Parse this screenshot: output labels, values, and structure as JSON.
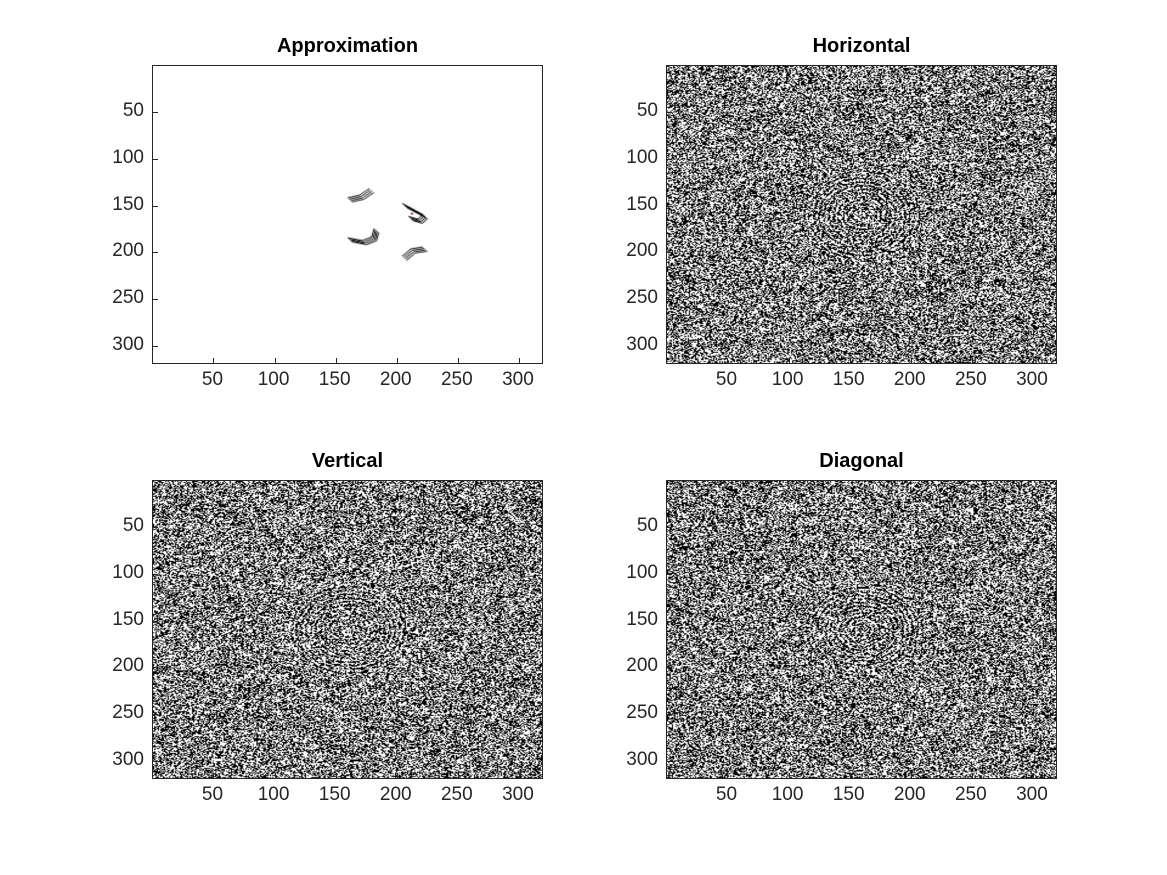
{
  "chart_data": [
    {
      "type": "heatmap",
      "title": "Approximation",
      "pattern": "sparse",
      "xlim": [
        0.5,
        320.5
      ],
      "ylim": [
        0.5,
        320.5
      ],
      "y_reversed": true,
      "xticks": [
        50,
        100,
        150,
        200,
        250,
        300
      ],
      "yticks": [
        50,
        100,
        150,
        200,
        250,
        300
      ],
      "xtick_labels": [
        "50",
        "100",
        "150",
        "200",
        "250",
        "300"
      ],
      "ytick_labels": [
        "50",
        "100",
        "150",
        "200",
        "250",
        "300"
      ],
      "grid": false,
      "colors": {
        "foreground": "#000000",
        "background": "#ffffff"
      }
    },
    {
      "type": "heatmap",
      "title": "Horizontal",
      "pattern": "noise",
      "xlim": [
        0.5,
        320.5
      ],
      "ylim": [
        0.5,
        320.5
      ],
      "y_reversed": true,
      "xticks": [
        50,
        100,
        150,
        200,
        250,
        300
      ],
      "yticks": [
        50,
        100,
        150,
        200,
        250,
        300
      ],
      "xtick_labels": [
        "50",
        "100",
        "150",
        "200",
        "250",
        "300"
      ],
      "ytick_labels": [
        "50",
        "100",
        "150",
        "200",
        "250",
        "300"
      ],
      "grid": false,
      "colors": {
        "foreground": "#000000",
        "background": "#ffffff"
      }
    },
    {
      "type": "heatmap",
      "title": "Vertical",
      "pattern": "noise",
      "xlim": [
        0.5,
        320.5
      ],
      "ylim": [
        0.5,
        320.5
      ],
      "y_reversed": true,
      "xticks": [
        50,
        100,
        150,
        200,
        250,
        300
      ],
      "yticks": [
        50,
        100,
        150,
        200,
        250,
        300
      ],
      "xtick_labels": [
        "50",
        "100",
        "150",
        "200",
        "250",
        "300"
      ],
      "ytick_labels": [
        "50",
        "100",
        "150",
        "200",
        "250",
        "300"
      ],
      "grid": false,
      "colors": {
        "foreground": "#000000",
        "background": "#ffffff"
      }
    },
    {
      "type": "heatmap",
      "title": "Diagonal",
      "pattern": "noise",
      "xlim": [
        0.5,
        320.5
      ],
      "ylim": [
        0.5,
        320.5
      ],
      "y_reversed": true,
      "xticks": [
        50,
        100,
        150,
        200,
        250,
        300
      ],
      "yticks": [
        50,
        100,
        150,
        200,
        250,
        300
      ],
      "xtick_labels": [
        "50",
        "100",
        "150",
        "200",
        "250",
        "300"
      ],
      "ytick_labels": [
        "50",
        "100",
        "150",
        "200",
        "250",
        "300"
      ],
      "grid": false,
      "colors": {
        "foreground": "#000000",
        "background": "#ffffff"
      }
    }
  ]
}
